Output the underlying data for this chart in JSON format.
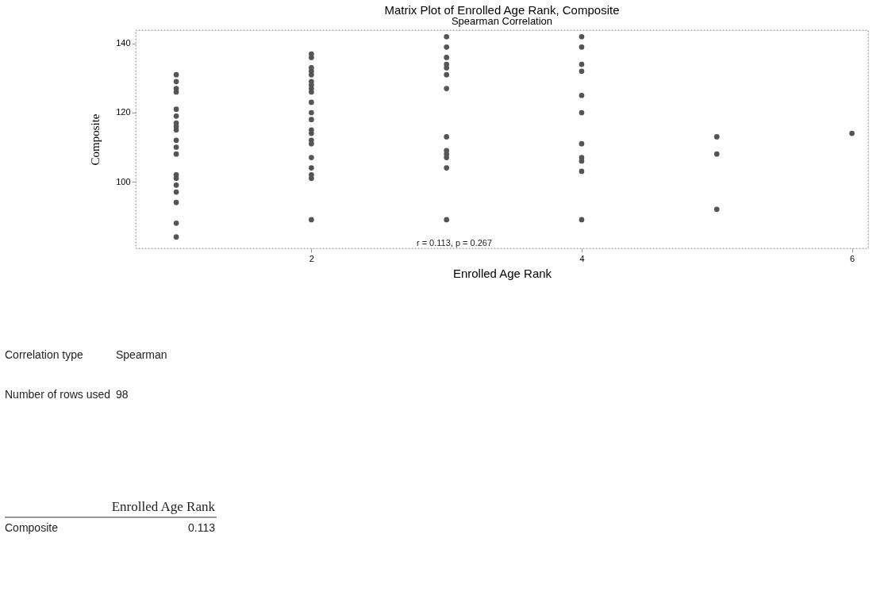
{
  "chart_data": {
    "type": "scatter",
    "title": "Matrix Plot of Enrolled Age Rank, Composite",
    "subtitle": "Spearman Correlation",
    "xlabel": "Enrolled Age Rank",
    "ylabel": "Composite",
    "x": [
      1,
      1,
      1,
      1,
      1,
      1,
      1,
      1,
      1,
      1,
      1,
      1,
      1,
      1,
      1,
      1,
      1,
      1,
      1,
      2,
      2,
      2,
      2,
      2,
      2,
      2,
      2,
      2,
      2,
      2,
      2,
      2,
      2,
      2,
      2,
      2,
      2,
      2,
      2,
      2,
      3,
      3,
      3,
      3,
      3,
      3,
      3,
      3,
      3,
      3,
      3,
      3,
      3,
      4,
      4,
      4,
      4,
      4,
      4,
      4,
      4,
      4,
      4,
      4,
      5,
      5,
      5,
      6
    ],
    "series": [
      {
        "color": "#555555",
        "values": [
          131,
          129,
          127,
          126,
          121,
          119,
          117,
          116,
          115,
          112,
          110,
          108,
          102,
          101,
          99,
          97,
          94,
          88,
          84,
          137,
          136,
          133,
          132,
          131,
          129,
          128,
          127,
          126,
          123,
          120,
          118,
          115,
          114,
          112,
          111,
          107,
          104,
          102,
          101,
          89,
          142,
          139,
          136,
          134,
          133,
          131,
          127,
          113,
          109,
          108,
          107,
          104,
          89,
          142,
          139,
          134,
          132,
          125,
          120,
          111,
          107,
          106,
          103,
          89,
          113,
          108,
          92,
          114
        ]
      }
    ],
    "xlim": [
      0.7,
      6.12
    ],
    "ylim": [
      80.7,
      143.9
    ],
    "xticks": [
      2,
      4,
      6
    ],
    "yticks": [
      100,
      120,
      140
    ],
    "marker": "circle",
    "grid": false,
    "annotations": [
      "r = 0.113, p = 0.267",
      "Correlation type",
      "Spearman",
      "Number of rows used",
      "98",
      "Enrolled Age Rank",
      "Composite",
      "0.113"
    ]
  }
}
